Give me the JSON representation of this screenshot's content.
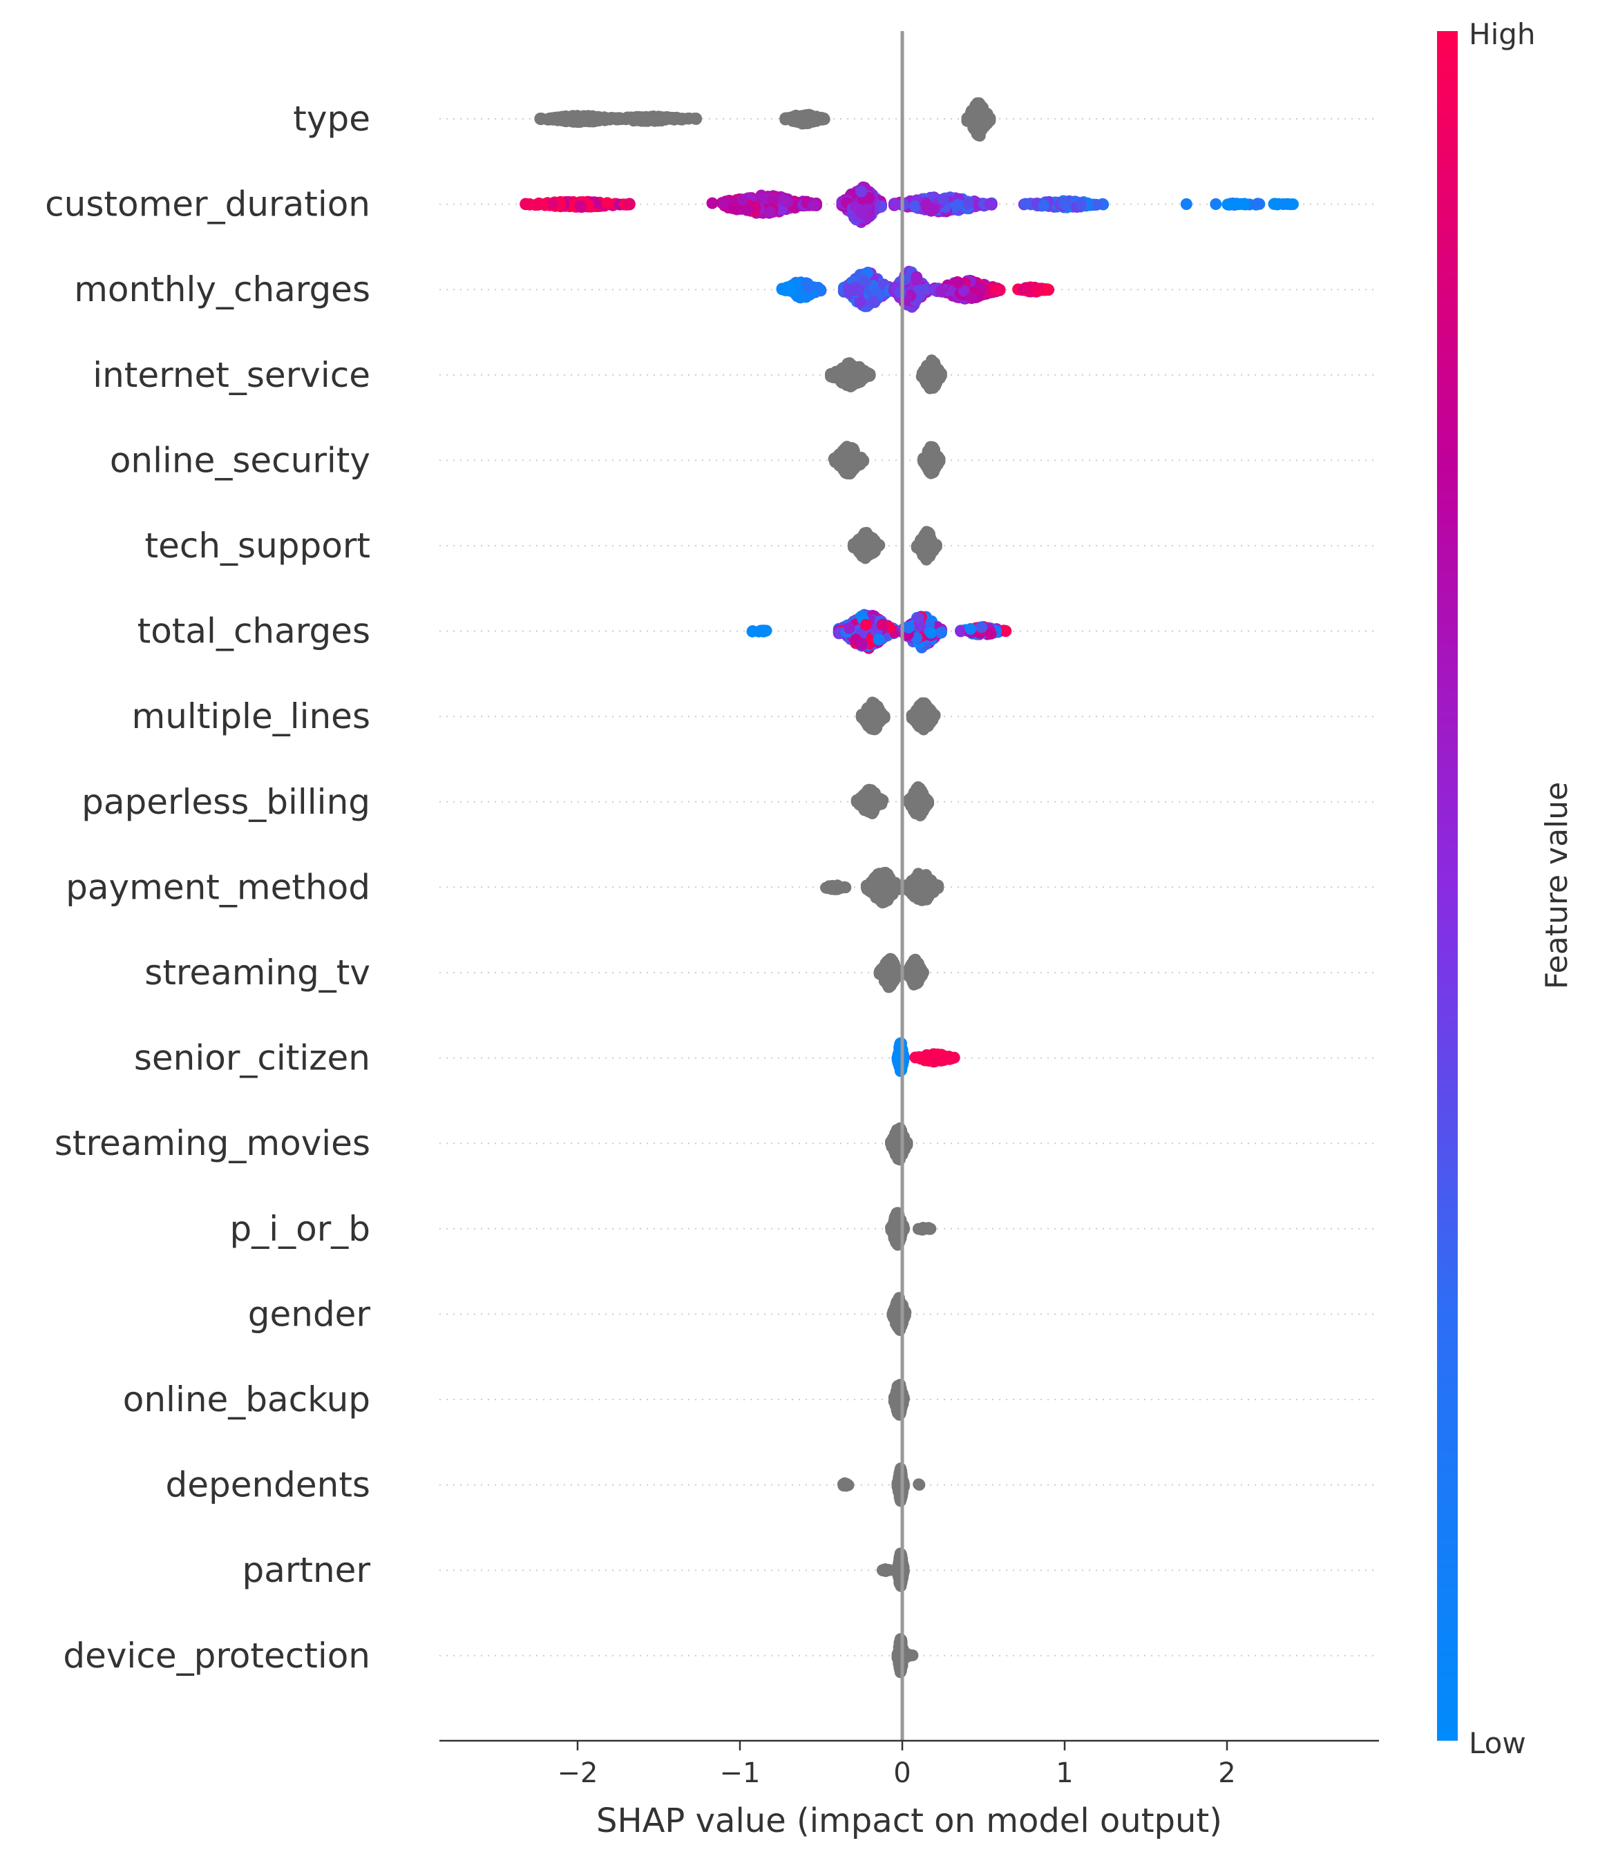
{
  "chart_data": {
    "type": "scatter",
    "subtype": "shap-beeswarm-summary",
    "title": "",
    "xlabel": "SHAP value (impact on model output)",
    "ylabel": "",
    "xlim": [
      -2.9,
      2.95
    ],
    "xticks": [
      -2,
      -1,
      0,
      1,
      2
    ],
    "xtick_labels": [
      "−2",
      "−1",
      "0",
      "1",
      "2"
    ],
    "zero_line": 0,
    "colorbar": {
      "label": "Feature value",
      "high_label": "High",
      "low_label": "Low",
      "colors": [
        "#008bfb",
        "#5c5ce6",
        "#8a2be2",
        "#b8009e",
        "#ff0052"
      ]
    },
    "point_colors": {
      "low": "#008bfb",
      "high": "#ff0052",
      "categorical": "#777777"
    },
    "features": [
      {
        "name": "type",
        "colored": false,
        "clusters": [
          {
            "center": -1.98,
            "spread": 0.25,
            "n": 200,
            "width": 0.08
          },
          {
            "center": -1.55,
            "spread": 0.28,
            "n": 130,
            "width": 0.06
          },
          {
            "center": -0.6,
            "spread": 0.12,
            "n": 110,
            "width": 0.12
          },
          {
            "center": 0.47,
            "spread": 0.07,
            "n": 130,
            "width": 0.42
          }
        ]
      },
      {
        "name": "customer_duration",
        "colored": true,
        "trend": "high-negative",
        "clusters": [
          {
            "center": -2.0,
            "spread": 0.32,
            "n": 150,
            "width": 0.07
          },
          {
            "center": -0.85,
            "spread": 0.32,
            "n": 230,
            "width": 0.22
          },
          {
            "center": -0.25,
            "spread": 0.12,
            "n": 200,
            "width": 0.44
          },
          {
            "center": 0.25,
            "spread": 0.3,
            "n": 180,
            "width": 0.18
          },
          {
            "center": 1.0,
            "spread": 0.25,
            "n": 110,
            "width": 0.08
          },
          {
            "center": 2.1,
            "spread": 0.35,
            "n": 28,
            "width": 0.02
          }
        ]
      },
      {
        "name": "monthly_charges",
        "colored": true,
        "trend": "high-positive",
        "clusters": [
          {
            "center": -0.62,
            "spread": 0.12,
            "n": 90,
            "width": 0.2
          },
          {
            "center": -0.22,
            "spread": 0.14,
            "n": 240,
            "width": 0.42
          },
          {
            "center": 0.05,
            "spread": 0.1,
            "n": 160,
            "width": 0.44
          },
          {
            "center": 0.4,
            "spread": 0.2,
            "n": 210,
            "width": 0.22
          },
          {
            "center": 0.8,
            "spread": 0.1,
            "n": 40,
            "width": 0.06
          }
        ]
      },
      {
        "name": "internet_service",
        "colored": false,
        "clusters": [
          {
            "center": -0.32,
            "spread": 0.12,
            "n": 160,
            "width": 0.3
          },
          {
            "center": 0.18,
            "spread": 0.06,
            "n": 140,
            "width": 0.36
          }
        ]
      },
      {
        "name": "online_security",
        "colored": false,
        "clusters": [
          {
            "center": -0.33,
            "spread": 0.09,
            "n": 150,
            "width": 0.34
          },
          {
            "center": 0.18,
            "spread": 0.05,
            "n": 150,
            "width": 0.34
          }
        ]
      },
      {
        "name": "tech_support",
        "colored": false,
        "clusters": [
          {
            "center": -0.22,
            "spread": 0.08,
            "n": 150,
            "width": 0.32
          },
          {
            "center": 0.15,
            "spread": 0.06,
            "n": 140,
            "width": 0.34
          }
        ]
      },
      {
        "name": "total_charges",
        "colored": true,
        "trend": "mixed",
        "clusters": [
          {
            "center": -0.22,
            "spread": 0.17,
            "n": 300,
            "width": 0.42
          },
          {
            "center": 0.12,
            "spread": 0.12,
            "n": 180,
            "width": 0.4
          },
          {
            "center": 0.5,
            "spread": 0.14,
            "n": 60,
            "width": 0.1
          },
          {
            "center": -0.88,
            "spread": 0.06,
            "n": 10,
            "width": 0.03
          }
        ]
      },
      {
        "name": "multiple_lines",
        "colored": false,
        "clusters": [
          {
            "center": -0.18,
            "spread": 0.07,
            "n": 150,
            "width": 0.34
          },
          {
            "center": 0.13,
            "spread": 0.07,
            "n": 150,
            "width": 0.34
          }
        ]
      },
      {
        "name": "paperless_billing",
        "colored": false,
        "clusters": [
          {
            "center": -0.2,
            "spread": 0.08,
            "n": 130,
            "width": 0.3
          },
          {
            "center": 0.1,
            "spread": 0.06,
            "n": 150,
            "width": 0.36
          }
        ]
      },
      {
        "name": "payment_method",
        "colored": false,
        "clusters": [
          {
            "center": -0.12,
            "spread": 0.1,
            "n": 160,
            "width": 0.38
          },
          {
            "center": 0.12,
            "spread": 0.1,
            "n": 160,
            "width": 0.36
          },
          {
            "center": -0.42,
            "spread": 0.07,
            "n": 20,
            "width": 0.06
          }
        ]
      },
      {
        "name": "streaming_tv",
        "colored": false,
        "clusters": [
          {
            "center": -0.08,
            "spread": 0.06,
            "n": 150,
            "width": 0.36
          },
          {
            "center": 0.08,
            "spread": 0.05,
            "n": 130,
            "width": 0.32
          }
        ]
      },
      {
        "name": "senior_citizen",
        "colored": true,
        "trend": "split",
        "clusters": [
          {
            "center": -0.01,
            "spread": 0.02,
            "n": 140,
            "width": 0.38,
            "level": 0.02
          },
          {
            "center": 0.2,
            "spread": 0.12,
            "n": 70,
            "width": 0.1,
            "level": 0.98
          }
        ]
      },
      {
        "name": "streaming_movies",
        "colored": false,
        "clusters": [
          {
            "center": -0.02,
            "spread": 0.05,
            "n": 170,
            "width": 0.4
          }
        ]
      },
      {
        "name": "p_i_or_b",
        "colored": false,
        "clusters": [
          {
            "center": -0.03,
            "spread": 0.04,
            "n": 160,
            "width": 0.4
          },
          {
            "center": 0.14,
            "spread": 0.04,
            "n": 14,
            "width": 0.04
          }
        ]
      },
      {
        "name": "gender",
        "colored": false,
        "clusters": [
          {
            "center": -0.02,
            "spread": 0.04,
            "n": 170,
            "width": 0.4
          }
        ]
      },
      {
        "name": "online_backup",
        "colored": false,
        "clusters": [
          {
            "center": -0.02,
            "spread": 0.03,
            "n": 170,
            "width": 0.4
          }
        ]
      },
      {
        "name": "dependents",
        "colored": false,
        "clusters": [
          {
            "center": -0.01,
            "spread": 0.02,
            "n": 150,
            "width": 0.4
          },
          {
            "center": -0.35,
            "spread": 0.02,
            "n": 10,
            "width": 0.05
          },
          {
            "center": 0.1,
            "spread": 0.01,
            "n": 3,
            "width": 0.02
          }
        ]
      },
      {
        "name": "partner",
        "colored": false,
        "clusters": [
          {
            "center": -0.01,
            "spread": 0.02,
            "n": 150,
            "width": 0.42
          },
          {
            "center": -0.1,
            "spread": 0.03,
            "n": 8,
            "width": 0.03
          }
        ]
      },
      {
        "name": "device_protection",
        "colored": false,
        "clusters": [
          {
            "center": -0.01,
            "spread": 0.02,
            "n": 150,
            "width": 0.42
          },
          {
            "center": 0.03,
            "spread": 0.04,
            "n": 10,
            "width": 0.04
          }
        ]
      }
    ]
  }
}
